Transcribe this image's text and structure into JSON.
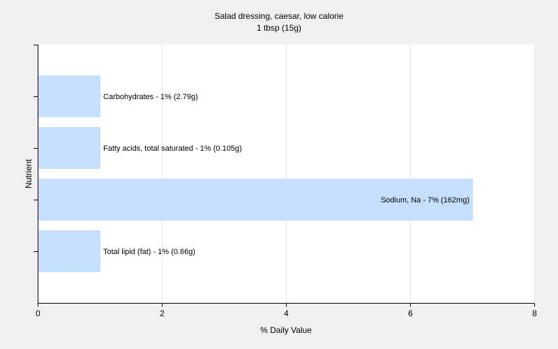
{
  "chart_data": {
    "type": "bar",
    "orientation": "horizontal",
    "title": "Salad dressing, caesar, low calorie",
    "subtitle": "1 tbsp (15g)",
    "xlabel": "% Daily Value",
    "ylabel": "Nutrient",
    "xlim": [
      0,
      8
    ],
    "xticks": [
      0,
      2,
      4,
      6,
      8
    ],
    "grid": true,
    "legend": "none",
    "bar_color": "#c6dffe",
    "categories": [
      "Carbohydrates",
      "Fatty acids, total saturated",
      "Sodium, Na",
      "Total lipid (fat)"
    ],
    "values": [
      1,
      1,
      7,
      1
    ],
    "labels": [
      "Carbohydrates - 1% (2.79g)",
      "Fatty acids, total saturated - 1% (0.105g)",
      "Sodium, Na - 7% (162mg)",
      "Total lipid (fat) - 1% (0.66g)"
    ]
  }
}
